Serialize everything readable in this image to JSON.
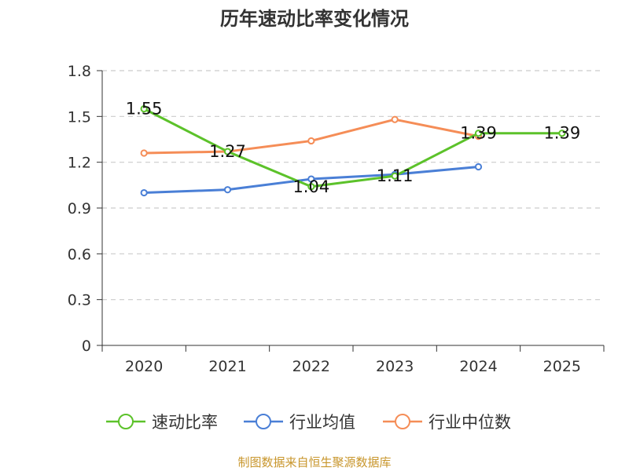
{
  "chart_data": {
    "type": "line",
    "title": "历年速动比率变化情况",
    "categories": [
      "2020",
      "2021",
      "2022",
      "2023",
      "2024",
      "2025"
    ],
    "yticks": [
      "0",
      "0.3",
      "0.6",
      "0.9",
      "1.2",
      "1.5",
      "1.8"
    ],
    "ylim": [
      0,
      1.8
    ],
    "grid": true,
    "legend_position": "bottom-center",
    "series": [
      {
        "name": "速动比率",
        "color": "#5cc22a",
        "values": [
          1.55,
          1.27,
          1.04,
          1.11,
          1.39,
          1.39
        ],
        "labels": [
          "1.55",
          "1.27",
          "1.04",
          "1.11",
          "1.39",
          "1.39"
        ]
      },
      {
        "name": "行业均值",
        "color": "#4a7fd6",
        "values": [
          1.0,
          1.02,
          1.09,
          1.12,
          1.17,
          null
        ]
      },
      {
        "name": "行业中位数",
        "color": "#f58d57",
        "values": [
          1.26,
          1.27,
          1.34,
          1.48,
          1.37,
          null
        ]
      }
    ]
  },
  "source_note": "制图数据来自恒生聚源数据库"
}
